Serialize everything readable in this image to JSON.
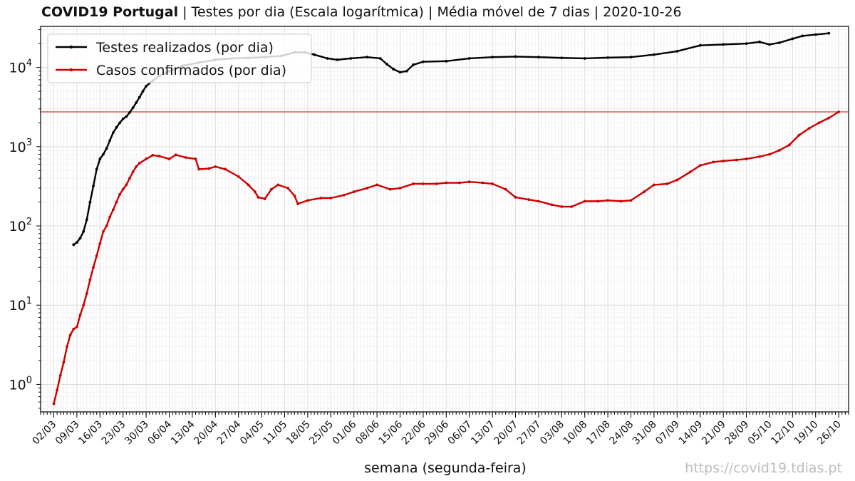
{
  "header": {
    "title_bold": "COVID19 Portugal",
    "title_rest": " | Testes por dia (Escala logarítmica) | Média móvel de 7 dias | 2020-10-26"
  },
  "footer": {
    "xlabel": "semana (segunda-feira)",
    "watermark": "https://covid19.tdias.pt"
  },
  "chart_data": {
    "type": "line",
    "title": "COVID19 Portugal | Testes por dia (Escala logarítmica) | Média móvel de 7 dias | 2020-10-26",
    "xlabel": "semana (segunda-feira)",
    "ylabel": "",
    "yscale": "log",
    "ylim": [
      0.45,
      33000
    ],
    "xlim": [
      "2020-02-27",
      "2020-10-29"
    ],
    "grid": true,
    "legend_position": "top-left",
    "y_ticks": [
      {
        "value": 1,
        "label_base": "10",
        "label_exp": "0"
      },
      {
        "value": 10,
        "label_base": "10",
        "label_exp": "1"
      },
      {
        "value": 100,
        "label_base": "10",
        "label_exp": "2"
      },
      {
        "value": 1000,
        "label_base": "10",
        "label_exp": "3"
      },
      {
        "value": 10000,
        "label_base": "10",
        "label_exp": "4"
      }
    ],
    "x_ticks": [
      {
        "date": "2020-03-02",
        "label": "02/03"
      },
      {
        "date": "2020-03-09",
        "label": "09/03"
      },
      {
        "date": "2020-03-16",
        "label": "16/03"
      },
      {
        "date": "2020-03-23",
        "label": "23/03"
      },
      {
        "date": "2020-03-30",
        "label": "30/03"
      },
      {
        "date": "2020-04-06",
        "label": "06/04"
      },
      {
        "date": "2020-04-13",
        "label": "13/04"
      },
      {
        "date": "2020-04-20",
        "label": "20/04"
      },
      {
        "date": "2020-04-27",
        "label": "27/04"
      },
      {
        "date": "2020-05-04",
        "label": "04/05"
      },
      {
        "date": "2020-05-11",
        "label": "11/05"
      },
      {
        "date": "2020-05-18",
        "label": "18/05"
      },
      {
        "date": "2020-05-25",
        "label": "25/05"
      },
      {
        "date": "2020-06-01",
        "label": "01/06"
      },
      {
        "date": "2020-06-08",
        "label": "08/06"
      },
      {
        "date": "2020-06-15",
        "label": "15/06"
      },
      {
        "date": "2020-06-22",
        "label": "22/06"
      },
      {
        "date": "2020-06-29",
        "label": "29/06"
      },
      {
        "date": "2020-07-06",
        "label": "06/07"
      },
      {
        "date": "2020-07-13",
        "label": "13/07"
      },
      {
        "date": "2020-07-20",
        "label": "20/07"
      },
      {
        "date": "2020-07-27",
        "label": "27/07"
      },
      {
        "date": "2020-08-03",
        "label": "03/08"
      },
      {
        "date": "2020-08-10",
        "label": "10/08"
      },
      {
        "date": "2020-08-17",
        "label": "17/08"
      },
      {
        "date": "2020-08-24",
        "label": "24/08"
      },
      {
        "date": "2020-08-31",
        "label": "31/08"
      },
      {
        "date": "2020-09-07",
        "label": "07/09"
      },
      {
        "date": "2020-09-14",
        "label": "14/09"
      },
      {
        "date": "2020-09-21",
        "label": "21/09"
      },
      {
        "date": "2020-09-28",
        "label": "28/09"
      },
      {
        "date": "2020-10-05",
        "label": "05/10"
      },
      {
        "date": "2020-10-12",
        "label": "12/10"
      },
      {
        "date": "2020-10-19",
        "label": "19/10"
      },
      {
        "date": "2020-10-26",
        "label": "26/10"
      }
    ],
    "hline": {
      "y": 2750,
      "color": "#e03030"
    },
    "series": [
      {
        "name": "Testes realizados (por dia)",
        "color": "#000000",
        "points": [
          [
            "2020-03-08",
            58
          ],
          [
            "2020-03-09",
            62
          ],
          [
            "2020-03-10",
            70
          ],
          [
            "2020-03-11",
            85
          ],
          [
            "2020-03-12",
            120
          ],
          [
            "2020-03-13",
            200
          ],
          [
            "2020-03-14",
            320
          ],
          [
            "2020-03-15",
            520
          ],
          [
            "2020-03-16",
            700
          ],
          [
            "2020-03-17",
            800
          ],
          [
            "2020-03-18",
            950
          ],
          [
            "2020-03-19",
            1200
          ],
          [
            "2020-03-20",
            1500
          ],
          [
            "2020-03-21",
            1750
          ],
          [
            "2020-03-22",
            2000
          ],
          [
            "2020-03-23",
            2250
          ],
          [
            "2020-03-24",
            2400
          ],
          [
            "2020-03-25",
            2700
          ],
          [
            "2020-03-26",
            3100
          ],
          [
            "2020-03-27",
            3600
          ],
          [
            "2020-03-28",
            4200
          ],
          [
            "2020-03-29",
            5000
          ],
          [
            "2020-03-30",
            5800
          ],
          [
            "2020-04-01",
            6800
          ],
          [
            "2020-04-03",
            7800
          ],
          [
            "2020-04-06",
            9000
          ],
          [
            "2020-04-10",
            10500
          ],
          [
            "2020-04-15",
            11500
          ],
          [
            "2020-04-20",
            12500
          ],
          [
            "2020-04-25",
            13000
          ],
          [
            "2020-04-30",
            13200
          ],
          [
            "2020-05-05",
            13500
          ],
          [
            "2020-05-10",
            14000
          ],
          [
            "2020-05-14",
            15500
          ],
          [
            "2020-05-17",
            15500
          ],
          [
            "2020-05-20",
            14500
          ],
          [
            "2020-05-24",
            13000
          ],
          [
            "2020-05-27",
            12500
          ],
          [
            "2020-05-31",
            13000
          ],
          [
            "2020-06-05",
            13500
          ],
          [
            "2020-06-09",
            13000
          ],
          [
            "2020-06-11",
            11000
          ],
          [
            "2020-06-13",
            9500
          ],
          [
            "2020-06-15",
            8700
          ],
          [
            "2020-06-17",
            9000
          ],
          [
            "2020-06-19",
            10800
          ],
          [
            "2020-06-22",
            11800
          ],
          [
            "2020-06-29",
            12000
          ],
          [
            "2020-07-06",
            13000
          ],
          [
            "2020-07-13",
            13500
          ],
          [
            "2020-07-20",
            13700
          ],
          [
            "2020-07-27",
            13500
          ],
          [
            "2020-08-03",
            13200
          ],
          [
            "2020-08-10",
            13000
          ],
          [
            "2020-08-17",
            13300
          ],
          [
            "2020-08-24",
            13500
          ],
          [
            "2020-08-31",
            14500
          ],
          [
            "2020-09-07",
            16000
          ],
          [
            "2020-09-14",
            19000
          ],
          [
            "2020-09-21",
            19500
          ],
          [
            "2020-09-28",
            20000
          ],
          [
            "2020-10-02",
            21000
          ],
          [
            "2020-10-05",
            19500
          ],
          [
            "2020-10-08",
            20500
          ],
          [
            "2020-10-12",
            23000
          ],
          [
            "2020-10-15",
            25000
          ],
          [
            "2020-10-19",
            26000
          ],
          [
            "2020-10-23",
            27000
          ]
        ]
      },
      {
        "name": "Casos confirmados (por dia)",
        "color": "#cc0000",
        "points": [
          [
            "2020-03-02",
            0.57
          ],
          [
            "2020-03-03",
            0.85
          ],
          [
            "2020-03-04",
            1.3
          ],
          [
            "2020-03-05",
            1.9
          ],
          [
            "2020-03-06",
            3.0
          ],
          [
            "2020-03-07",
            4.2
          ],
          [
            "2020-03-08",
            5.0
          ],
          [
            "2020-03-09",
            5.3
          ],
          [
            "2020-03-10",
            7.5
          ],
          [
            "2020-03-11",
            10
          ],
          [
            "2020-03-12",
            14
          ],
          [
            "2020-03-13",
            21
          ],
          [
            "2020-03-14",
            30
          ],
          [
            "2020-03-15",
            42
          ],
          [
            "2020-03-16",
            60
          ],
          [
            "2020-03-17",
            85
          ],
          [
            "2020-03-18",
            100
          ],
          [
            "2020-03-19",
            130
          ],
          [
            "2020-03-20",
            160
          ],
          [
            "2020-03-21",
            200
          ],
          [
            "2020-03-22",
            250
          ],
          [
            "2020-03-23",
            290
          ],
          [
            "2020-03-24",
            330
          ],
          [
            "2020-03-25",
            400
          ],
          [
            "2020-03-26",
            480
          ],
          [
            "2020-03-27",
            560
          ],
          [
            "2020-03-28",
            620
          ],
          [
            "2020-03-30",
            700
          ],
          [
            "2020-04-01",
            780
          ],
          [
            "2020-04-03",
            760
          ],
          [
            "2020-04-06",
            700
          ],
          [
            "2020-04-08",
            790
          ],
          [
            "2020-04-11",
            730
          ],
          [
            "2020-04-14",
            700
          ],
          [
            "2020-04-15",
            520
          ],
          [
            "2020-04-18",
            530
          ],
          [
            "2020-04-20",
            560
          ],
          [
            "2020-04-23",
            520
          ],
          [
            "2020-04-27",
            420
          ],
          [
            "2020-04-30",
            330
          ],
          [
            "2020-05-02",
            270
          ],
          [
            "2020-05-03",
            230
          ],
          [
            "2020-05-05",
            220
          ],
          [
            "2020-05-07",
            290
          ],
          [
            "2020-05-09",
            330
          ],
          [
            "2020-05-12",
            300
          ],
          [
            "2020-05-14",
            240
          ],
          [
            "2020-05-15",
            190
          ],
          [
            "2020-05-18",
            210
          ],
          [
            "2020-05-22",
            225
          ],
          [
            "2020-05-25",
            225
          ],
          [
            "2020-05-29",
            245
          ],
          [
            "2020-06-01",
            270
          ],
          [
            "2020-06-05",
            300
          ],
          [
            "2020-06-08",
            330
          ],
          [
            "2020-06-12",
            290
          ],
          [
            "2020-06-15",
            300
          ],
          [
            "2020-06-19",
            340
          ],
          [
            "2020-06-22",
            340
          ],
          [
            "2020-06-26",
            340
          ],
          [
            "2020-06-29",
            350
          ],
          [
            "2020-07-03",
            350
          ],
          [
            "2020-07-06",
            360
          ],
          [
            "2020-07-10",
            350
          ],
          [
            "2020-07-13",
            340
          ],
          [
            "2020-07-17",
            290
          ],
          [
            "2020-07-20",
            230
          ],
          [
            "2020-07-24",
            215
          ],
          [
            "2020-07-27",
            205
          ],
          [
            "2020-07-31",
            185
          ],
          [
            "2020-08-03",
            175
          ],
          [
            "2020-08-06",
            175
          ],
          [
            "2020-08-10",
            205
          ],
          [
            "2020-08-14",
            205
          ],
          [
            "2020-08-17",
            210
          ],
          [
            "2020-08-21",
            205
          ],
          [
            "2020-08-24",
            210
          ],
          [
            "2020-08-28",
            270
          ],
          [
            "2020-08-31",
            330
          ],
          [
            "2020-09-04",
            340
          ],
          [
            "2020-09-07",
            380
          ],
          [
            "2020-09-11",
            480
          ],
          [
            "2020-09-14",
            580
          ],
          [
            "2020-09-18",
            640
          ],
          [
            "2020-09-21",
            660
          ],
          [
            "2020-09-25",
            680
          ],
          [
            "2020-09-28",
            700
          ],
          [
            "2020-10-02",
            750
          ],
          [
            "2020-10-05",
            800
          ],
          [
            "2020-10-08",
            900
          ],
          [
            "2020-10-11",
            1050
          ],
          [
            "2020-10-14",
            1400
          ],
          [
            "2020-10-17",
            1700
          ],
          [
            "2020-10-20",
            2000
          ],
          [
            "2020-10-23",
            2300
          ],
          [
            "2020-10-26",
            2750
          ]
        ]
      }
    ]
  }
}
